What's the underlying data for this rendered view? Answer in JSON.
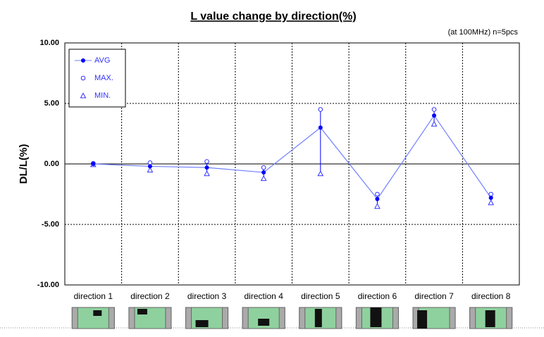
{
  "chart_data": {
    "type": "line",
    "title": "L value change by direction(%)",
    "subtitle": "(at 100MHz)  n=5pcs",
    "y_label": "DL/L(%)",
    "categories": [
      "direction 1",
      "direction 2",
      "direction 3",
      "direction 4",
      "direction 5",
      "direction 6",
      "direction 7",
      "direction 8"
    ],
    "series": [
      {
        "name": "AVG",
        "color": "#0000ff",
        "values": [
          0.0,
          -0.2,
          -0.3,
          -0.7,
          3.0,
          -2.9,
          4.0,
          -2.8
        ]
      },
      {
        "name": "MAX.",
        "color": "#3333ff",
        "values": [
          0.05,
          0.1,
          0.2,
          -0.3,
          4.5,
          -2.5,
          4.5,
          -2.5
        ]
      },
      {
        "name": "MIN.",
        "color": "#3333ff",
        "values": [
          -0.05,
          -0.5,
          -0.8,
          -1.2,
          -0.8,
          -3.5,
          3.3,
          -3.2
        ]
      }
    ],
    "ylim": [
      -10,
      10
    ],
    "yticks": [
      {
        "value": -10,
        "label": "-10.00"
      },
      {
        "value": -5,
        "label": "-5.00"
      },
      {
        "value": 0,
        "label": "0.00"
      },
      {
        "value": 5,
        "label": "5.00"
      },
      {
        "value": 10,
        "label": "10.00"
      }
    ],
    "grid": true,
    "legend": "upper left"
  }
}
